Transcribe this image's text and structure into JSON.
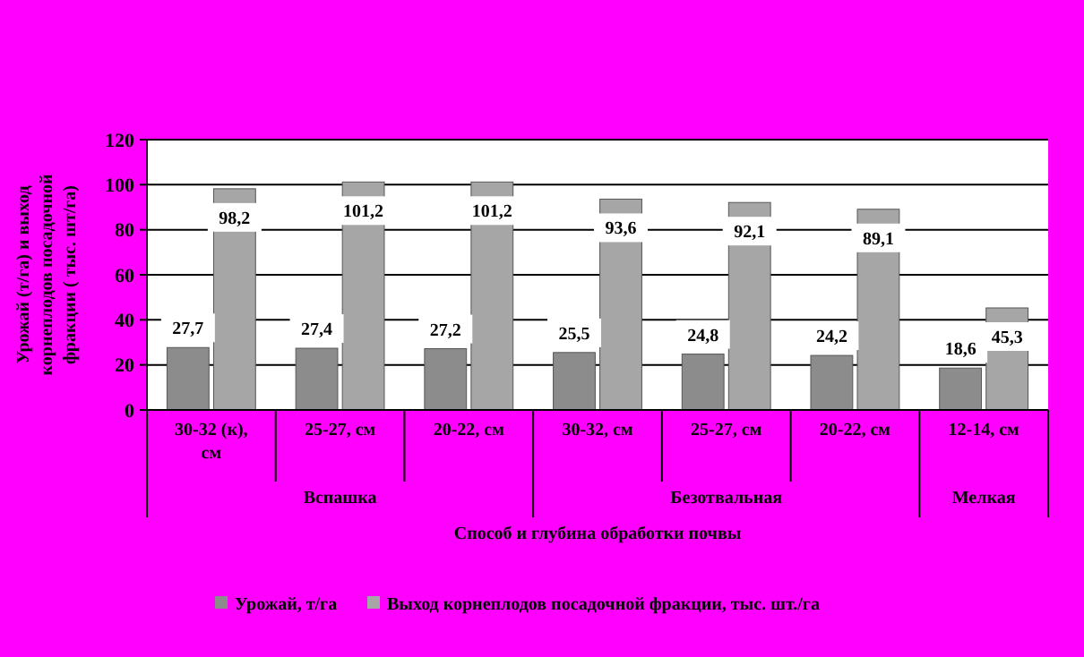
{
  "chart_data": {
    "type": "bar",
    "categories": [
      "30-32 (к), см",
      "25-27, см",
      "20-22, см",
      "30-32, см",
      "25-27, см",
      "20-22, см",
      "12-14, см"
    ],
    "series": [
      {
        "name": "Урожай, т/га",
        "color": "#8c8c8c",
        "values": [
          27.7,
          27.4,
          27.2,
          25.5,
          24.8,
          24.2,
          18.6
        ],
        "value_labels": [
          "27,7",
          "27,4",
          "27,2",
          "25,5",
          "24,8",
          "24,2",
          "18,6"
        ]
      },
      {
        "name": "Выход корнеплодов посадочной фракции, тыс. шт./га",
        "color": "#a6a6a6",
        "values": [
          98.2,
          101.2,
          101.2,
          93.6,
          92.1,
          89.1,
          45.3
        ],
        "value_labels": [
          "98,2",
          "101,2",
          "101,2",
          "93,6",
          "92,1",
          "89,1",
          "45,3"
        ]
      }
    ],
    "ylabel": "Урожай (т/га) и выход корнеплодов посадочной фракции ( тыс. шт/га)",
    "xlabel": "Способ и глубина обработки почвы",
    "annotations": [
      "Вспашка",
      "Безотвальная",
      "Мелкая"
    ],
    "ylim": [
      0,
      120
    ],
    "yticks": [
      0,
      20,
      40,
      60,
      80,
      100,
      120
    ],
    "grid": "y",
    "legend": "bottom"
  }
}
